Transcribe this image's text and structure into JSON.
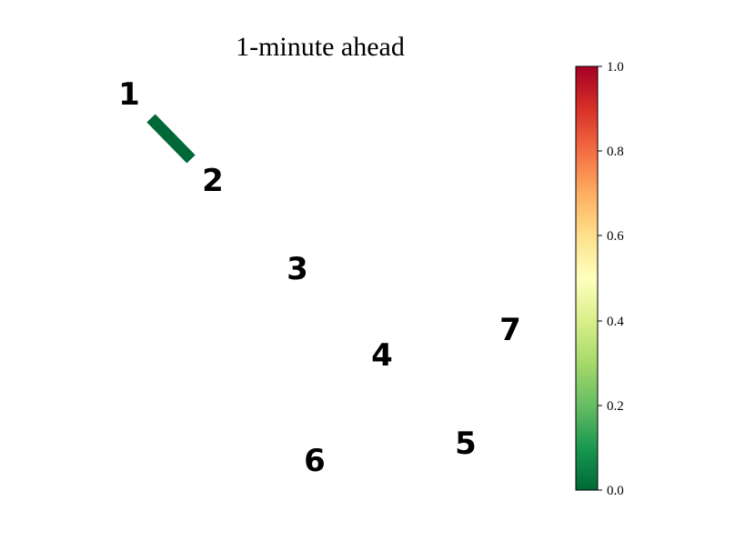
{
  "title": "1-minute ahead",
  "nodes": [
    {
      "id": "1",
      "label": "1"
    },
    {
      "id": "2",
      "label": "2"
    },
    {
      "id": "3",
      "label": "3"
    },
    {
      "id": "4",
      "label": "4"
    },
    {
      "id": "5",
      "label": "5"
    },
    {
      "id": "6",
      "label": "6"
    },
    {
      "id": "7",
      "label": "7"
    }
  ],
  "edges": [
    {
      "from": "1",
      "to": "2",
      "value": 0.0
    }
  ],
  "colorbar": {
    "colormap": "RdYlGn_r",
    "min": 0.0,
    "max": 1.0,
    "ticks": [
      "0.0",
      "0.2",
      "0.4",
      "0.6",
      "0.8",
      "1.0"
    ],
    "colors": [
      "#006837",
      "#66bd63",
      "#d9ef8b",
      "#fee08b",
      "#f46d43",
      "#a50026"
    ]
  }
}
